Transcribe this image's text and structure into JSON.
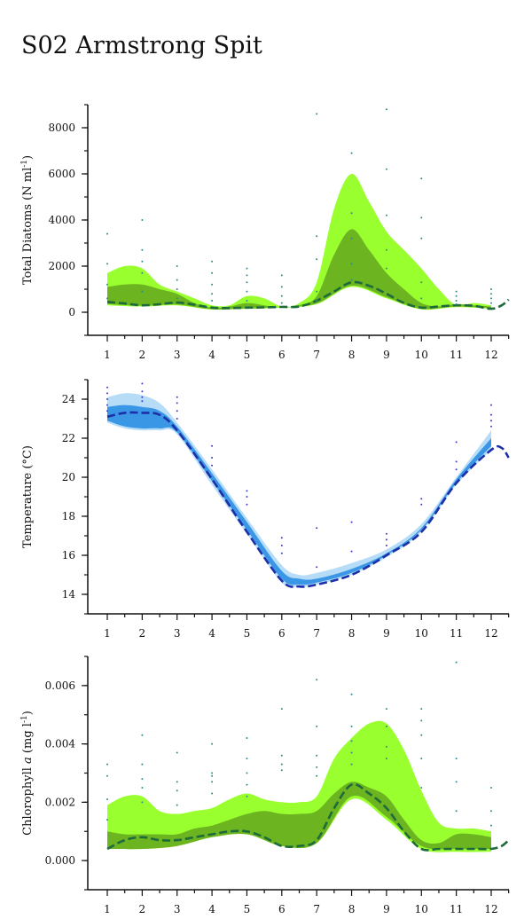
{
  "title": "S02 Armstrong Spit",
  "chart_data": [
    {
      "type": "area",
      "ylabel": "Total Diatoms (N ml",
      "ylabel_sup": "-1",
      "ylabel_close": ")",
      "x_ticks": [
        "1",
        "2",
        "3",
        "4",
        "5",
        "6",
        "7",
        "8",
        "9",
        "10",
        "11",
        "12"
      ],
      "y_ticks": [
        0,
        2000,
        4000,
        6000,
        8000
      ],
      "y_tick_labels": [
        "0",
        "2000",
        "4000",
        "6000",
        "8000"
      ],
      "ylim": [
        -1000,
        9000
      ],
      "colors": {
        "outer": "#99ff2e",
        "inner": "#6cb420",
        "line": "#1d6b3a",
        "points": "#2e8b8b"
      },
      "series": [
        {
          "role": "upper_outer",
          "x": [
            1,
            1.5,
            2,
            2.5,
            3,
            3.5,
            4,
            4.5,
            5,
            5.5,
            6,
            6.5,
            7,
            7.5,
            8,
            8.5,
            9,
            9.5,
            10,
            10.5,
            11,
            11.5,
            12
          ],
          "values": [
            1700,
            2000,
            1900,
            1200,
            900,
            600,
            300,
            300,
            700,
            600,
            250,
            400,
            1300,
            4500,
            6000,
            4800,
            3500,
            2700,
            1900,
            1000,
            300,
            400,
            300
          ]
        },
        {
          "role": "lower_outer",
          "x": [
            1,
            2,
            3,
            4,
            5,
            6,
            7,
            8,
            9,
            10,
            11,
            12
          ],
          "values": [
            300,
            250,
            300,
            120,
            150,
            200,
            350,
            1100,
            600,
            120,
            220,
            150
          ]
        },
        {
          "role": "upper_inner",
          "x": [
            1,
            1.5,
            2,
            2.5,
            3,
            3.5,
            4,
            4.5,
            5,
            5.5,
            6,
            6.5,
            7,
            7.5,
            8,
            8.5,
            9,
            9.5,
            10,
            10.5,
            11,
            11.5,
            12
          ],
          "values": [
            1100,
            1200,
            1200,
            1000,
            800,
            400,
            200,
            250,
            400,
            300,
            200,
            300,
            700,
            2500,
            3600,
            2700,
            1700,
            1000,
            400,
            250,
            350,
            300,
            250
          ]
        },
        {
          "role": "lower_inner",
          "x": [
            1,
            2,
            3,
            4,
            5,
            6,
            7,
            8,
            9,
            10,
            11,
            12
          ],
          "values": [
            350,
            280,
            330,
            130,
            160,
            210,
            380,
            1150,
            650,
            150,
            250,
            170
          ]
        },
        {
          "role": "mean_line",
          "x": [
            1,
            1.5,
            2,
            2.5,
            3,
            3.5,
            4,
            4.5,
            5,
            5.5,
            6,
            6.5,
            7,
            7.5,
            8,
            8.5,
            9,
            9.5,
            10,
            10.5,
            11,
            11.5,
            12,
            12.3,
            12.5
          ],
          "values": [
            450,
            380,
            300,
            350,
            420,
            330,
            200,
            180,
            200,
            210,
            230,
            250,
            500,
            900,
            1300,
            1150,
            800,
            400,
            200,
            250,
            300,
            280,
            150,
            300,
            550
          ]
        }
      ],
      "points": {
        "x": [
          1,
          1,
          1,
          1,
          2,
          2,
          2,
          2,
          2,
          3,
          3,
          3,
          3,
          4,
          4,
          4,
          4,
          4,
          5,
          5,
          5,
          5,
          5,
          6,
          6,
          6,
          6,
          7,
          7,
          7,
          7,
          7,
          8,
          8,
          8,
          8,
          8,
          9,
          9,
          9,
          9,
          9,
          10,
          10,
          10,
          10,
          10,
          11,
          11,
          11,
          11,
          12,
          12,
          12,
          12
        ],
        "y": [
          3400,
          2100,
          1200,
          600,
          4000,
          2700,
          2200,
          1700,
          900,
          2000,
          1400,
          1000,
          600,
          2200,
          1700,
          1200,
          800,
          500,
          1900,
          1600,
          1300,
          900,
          500,
          1600,
          1100,
          700,
          400,
          8600,
          3300,
          2300,
          900,
          500,
          6900,
          4300,
          3200,
          2100,
          1400,
          8800,
          6200,
          4200,
          2700,
          1900,
          5800,
          4100,
          3200,
          1300,
          600,
          900,
          700,
          500,
          350,
          1000,
          800,
          600,
          400
        ]
      }
    },
    {
      "type": "area",
      "ylabel": "Temperature (°C)",
      "x_ticks": [
        "1",
        "2",
        "3",
        "4",
        "5",
        "6",
        "7",
        "8",
        "9",
        "10",
        "11",
        "12"
      ],
      "y_ticks": [
        14,
        16,
        18,
        20,
        22,
        24
      ],
      "y_tick_labels": [
        "14",
        "16",
        "18",
        "20",
        "22",
        "24"
      ],
      "ylim": [
        13,
        25
      ],
      "colors": {
        "outer": "#b6dcf8",
        "inner": "#3a97e6",
        "line": "#1c2ea8",
        "points": "#3a3acf"
      },
      "series": [
        {
          "role": "upper_outer",
          "x": [
            1,
            1.5,
            2,
            2.5,
            3,
            4,
            5,
            6,
            6.5,
            7,
            8,
            9,
            10,
            11,
            12
          ],
          "values": [
            24.1,
            24.3,
            24.2,
            23.8,
            22.8,
            20.4,
            17.9,
            15.5,
            15.0,
            15.1,
            15.6,
            16.3,
            17.6,
            20.0,
            22.4
          ]
        },
        {
          "role": "lower_outer",
          "x": [
            1,
            1.5,
            2,
            2.5,
            3,
            4,
            5,
            6,
            6.5,
            7,
            8,
            9,
            10,
            11,
            12
          ],
          "values": [
            22.8,
            22.5,
            22.4,
            22.4,
            22.2,
            19.6,
            17.1,
            14.6,
            14.4,
            14.5,
            15.0,
            15.9,
            17.2,
            19.6,
            21.4
          ]
        },
        {
          "role": "upper_inner",
          "x": [
            1,
            1.5,
            2,
            2.5,
            3,
            4,
            5,
            6,
            6.5,
            7,
            8,
            9,
            10,
            11,
            12
          ],
          "values": [
            23.6,
            23.7,
            23.6,
            23.4,
            22.6,
            20.2,
            17.7,
            15.2,
            14.8,
            14.8,
            15.3,
            16.1,
            17.4,
            19.9,
            22.0
          ]
        },
        {
          "role": "lower_inner",
          "x": [
            1,
            1.5,
            2,
            2.5,
            3,
            4,
            5,
            6,
            6.5,
            7,
            8,
            9,
            10,
            11,
            12
          ],
          "values": [
            22.9,
            22.6,
            22.5,
            22.5,
            22.3,
            19.8,
            17.3,
            14.8,
            14.5,
            14.6,
            15.1,
            16.0,
            17.3,
            19.7,
            21.6
          ]
        },
        {
          "role": "mean_line",
          "x": [
            1,
            1.5,
            2,
            2.5,
            3,
            4,
            5,
            6,
            6.5,
            7,
            8,
            9,
            10,
            11,
            12,
            12.3,
            12.5
          ],
          "values": [
            23.1,
            23.3,
            23.3,
            23.2,
            22.4,
            19.9,
            17.2,
            14.7,
            14.4,
            14.5,
            15.0,
            16.0,
            17.2,
            19.7,
            21.4,
            21.5,
            21.0
          ]
        }
      ],
      "points": {
        "x": [
          1,
          1,
          1,
          1,
          1,
          2,
          2,
          2,
          2,
          3,
          3,
          3,
          3,
          4,
          4,
          4,
          5,
          5,
          5,
          6,
          6,
          6,
          7,
          7,
          8,
          8,
          9,
          9,
          9,
          10,
          10,
          11,
          11,
          11,
          12,
          12,
          12,
          12
        ],
        "y": [
          24.6,
          24.3,
          24.0,
          23.7,
          23.4,
          24.8,
          24.4,
          24.1,
          23.9,
          24.1,
          23.8,
          23.4,
          23.0,
          21.6,
          21.0,
          20.6,
          19.3,
          19.0,
          18.6,
          16.9,
          16.5,
          16.1,
          17.4,
          15.4,
          17.7,
          16.2,
          17.1,
          16.8,
          16.5,
          18.9,
          18.6,
          21.8,
          20.8,
          20.4,
          23.7,
          23.2,
          22.9,
          22.6
        ]
      }
    },
    {
      "type": "area",
      "ylabel": "Chlorophyll ",
      "ylabel_italic": "a",
      "ylabel_tail": " (mg l",
      "ylabel_sup": "-1",
      "ylabel_close": ")",
      "x_ticks": [
        "1",
        "2",
        "3",
        "4",
        "5",
        "6",
        "7",
        "8",
        "9",
        "10",
        "11",
        "12"
      ],
      "y_ticks": [
        0,
        0.002,
        0.004,
        0.006
      ],
      "y_tick_labels": [
        "0.000",
        "0.002",
        "0.004",
        "0.006"
      ],
      "ylim": [
        -0.001,
        0.007
      ],
      "colors": {
        "outer": "#99ff2e",
        "inner": "#6cb420",
        "line": "#1d6b3a",
        "points": "#2e8b8b"
      },
      "series": [
        {
          "role": "upper_outer",
          "x": [
            1,
            1.5,
            2,
            2.5,
            3,
            3.5,
            4,
            4.5,
            5,
            5.5,
            6,
            6.5,
            7,
            7.5,
            8,
            8.5,
            9,
            9.5,
            10,
            10.5,
            11,
            11.5,
            12
          ],
          "values": [
            0.0019,
            0.0022,
            0.0022,
            0.0017,
            0.0016,
            0.0017,
            0.0018,
            0.0021,
            0.0023,
            0.0021,
            0.002,
            0.002,
            0.0022,
            0.0035,
            0.0042,
            0.0047,
            0.0047,
            0.0038,
            0.0024,
            0.0013,
            0.0011,
            0.0011,
            0.001
          ]
        },
        {
          "role": "lower_outer",
          "x": [
            1,
            2,
            3,
            4,
            5,
            6,
            7,
            8,
            9,
            10,
            11,
            12
          ],
          "values": [
            0.0004,
            0.0004,
            0.0005,
            0.0008,
            0.0009,
            0.0005,
            0.0006,
            0.0021,
            0.0014,
            0.0004,
            0.0003,
            0.0003
          ]
        },
        {
          "role": "upper_inner",
          "x": [
            1,
            1.5,
            2,
            2.5,
            3,
            3.5,
            4,
            4.5,
            5,
            5.5,
            6,
            6.5,
            7,
            7.5,
            8,
            8.5,
            9,
            9.5,
            10,
            10.5,
            11,
            11.5,
            12
          ],
          "values": [
            0.001,
            0.0009,
            0.0009,
            0.0009,
            0.0009,
            0.0011,
            0.0012,
            0.0014,
            0.0016,
            0.0017,
            0.0016,
            0.0016,
            0.0017,
            0.0023,
            0.0027,
            0.0025,
            0.0022,
            0.0014,
            0.0007,
            0.0006,
            0.0009,
            0.0009,
            0.0008
          ]
        },
        {
          "role": "lower_inner",
          "x": [
            1,
            2,
            3,
            4,
            5,
            6,
            7,
            8,
            9,
            10,
            11,
            12
          ],
          "values": [
            0.0004,
            0.0004,
            0.0005,
            0.0008,
            0.0009,
            0.0005,
            0.0006,
            0.0022,
            0.0015,
            0.0005,
            0.0004,
            0.0004
          ]
        },
        {
          "role": "mean_line",
          "x": [
            1,
            1.5,
            2,
            2.5,
            3,
            3.5,
            4,
            4.5,
            5,
            5.5,
            6,
            6.5,
            7,
            7.5,
            8,
            8.5,
            9,
            9.5,
            10,
            10.5,
            11,
            11.5,
            12,
            12.3,
            12.5
          ],
          "values": [
            0.0004,
            0.0007,
            0.0008,
            0.0007,
            0.0007,
            0.0008,
            0.0009,
            0.001,
            0.001,
            0.0008,
            0.0005,
            0.0005,
            0.0007,
            0.0018,
            0.0026,
            0.0023,
            0.0018,
            0.001,
            0.0004,
            0.0004,
            0.0004,
            0.0004,
            0.0004,
            0.0005,
            0.0007
          ]
        }
      ],
      "points": {
        "x": [
          1,
          1,
          1,
          1,
          2,
          2,
          2,
          2,
          2,
          3,
          3,
          3,
          3,
          4,
          4,
          4,
          4,
          4,
          5,
          5,
          5,
          5,
          5,
          6,
          6,
          6,
          6,
          7,
          7,
          7,
          7,
          7,
          8,
          8,
          8,
          8,
          8,
          9,
          9,
          9,
          9,
          10,
          10,
          10,
          10,
          10,
          11,
          11,
          11,
          11,
          12,
          12,
          12
        ],
        "y": [
          0.0033,
          0.0029,
          0.0021,
          0.0014,
          0.0043,
          0.0033,
          0.0028,
          0.0025,
          0.002,
          0.0037,
          0.0027,
          0.0024,
          0.0019,
          0.004,
          0.003,
          0.0029,
          0.0027,
          0.0023,
          0.0042,
          0.0035,
          0.003,
          0.0026,
          0.0022,
          0.0052,
          0.0036,
          0.0033,
          0.0031,
          0.0062,
          0.0046,
          0.0036,
          0.0032,
          0.0029,
          0.0057,
          0.0046,
          0.0041,
          0.0037,
          0.0033,
          0.0052,
          0.0046,
          0.0039,
          0.0035,
          0.0052,
          0.0048,
          0.0043,
          0.0035,
          0.0025,
          0.0068,
          0.0035,
          0.0027,
          0.0017,
          0.0025,
          0.0017,
          0.0012
        ]
      }
    }
  ]
}
